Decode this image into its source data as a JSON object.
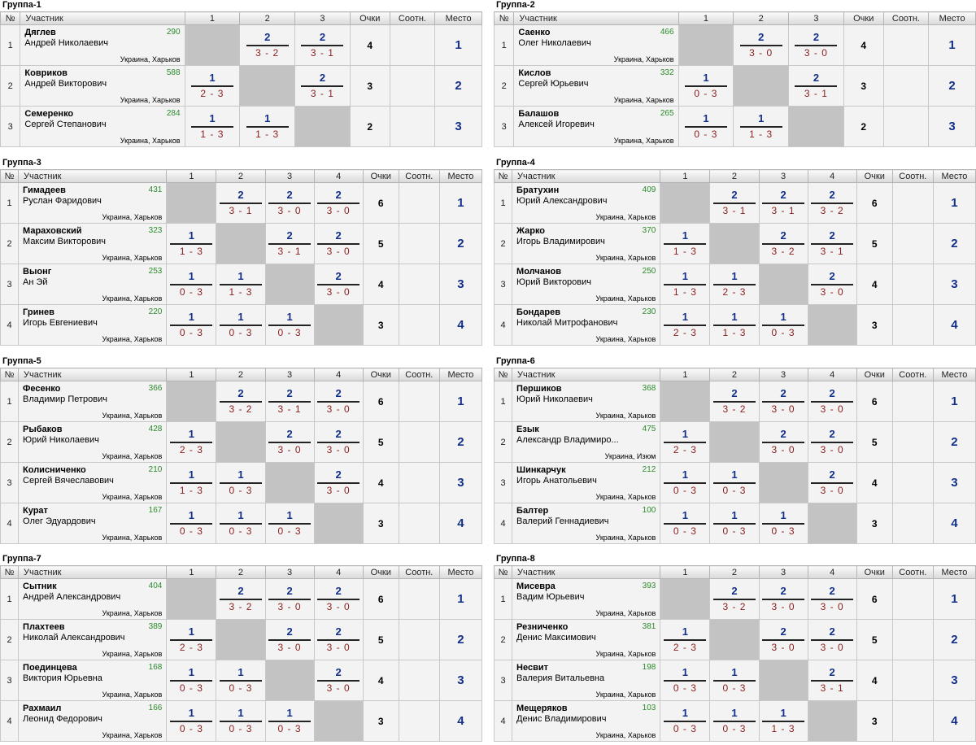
{
  "headers": {
    "num": "№",
    "participant": "Участник",
    "points": "Очки",
    "sootn": "Соотн.",
    "place": "Место"
  },
  "groups": [
    {
      "title": "Группа-1",
      "cols": [
        "1",
        "2",
        "3"
      ],
      "rows": [
        {
          "n": "1",
          "surname": "Дяглев",
          "name": "Андрей Николаевич",
          "rating": "290",
          "loc": "Украина, Харьков",
          "res": [
            null,
            {
              "p": "2",
              "s": "3 - 2"
            },
            {
              "p": "2",
              "s": "3 - 1"
            }
          ],
          "points": "4",
          "place": "1"
        },
        {
          "n": "2",
          "surname": "Ковриков",
          "name": "Андрей Викторович",
          "rating": "588",
          "loc": "Украина, Харьков",
          "res": [
            {
              "p": "1",
              "s": "2 - 3"
            },
            null,
            {
              "p": "2",
              "s": "3 - 1"
            }
          ],
          "points": "3",
          "place": "2"
        },
        {
          "n": "3",
          "surname": "Семеренко",
          "name": "Сергей Степанович",
          "rating": "284",
          "loc": "Украина, Харьков",
          "res": [
            {
              "p": "1",
              "s": "1 - 3"
            },
            {
              "p": "1",
              "s": "1 - 3"
            },
            null
          ],
          "points": "2",
          "place": "3"
        }
      ]
    },
    {
      "title": "Группа-2",
      "cols": [
        "1",
        "2",
        "3"
      ],
      "rows": [
        {
          "n": "1",
          "surname": "Саенко",
          "name": "Олег Николаевич",
          "rating": "466",
          "loc": "Украина, Харьков",
          "res": [
            null,
            {
              "p": "2",
              "s": "3 - 0"
            },
            {
              "p": "2",
              "s": "3 - 0"
            }
          ],
          "points": "4",
          "place": "1"
        },
        {
          "n": "2",
          "surname": "Кислов",
          "name": "Сергей Юрьевич",
          "rating": "332",
          "loc": "Украина, Харьков",
          "res": [
            {
              "p": "1",
              "s": "0 - 3"
            },
            null,
            {
              "p": "2",
              "s": "3 - 1"
            }
          ],
          "points": "3",
          "place": "2"
        },
        {
          "n": "3",
          "surname": "Балашов",
          "name": "Алексей Игоревич",
          "rating": "265",
          "loc": "Украина, Харьков",
          "res": [
            {
              "p": "1",
              "s": "0 - 3"
            },
            {
              "p": "1",
              "s": "1 - 3"
            },
            null
          ],
          "points": "2",
          "place": "3"
        }
      ]
    },
    {
      "title": "Группа-3",
      "cols": [
        "1",
        "2",
        "3",
        "4"
      ],
      "rows": [
        {
          "n": "1",
          "surname": "Гимадеев",
          "name": "Руслан Фаридович",
          "rating": "431",
          "loc": "Украина, Харьков",
          "res": [
            null,
            {
              "p": "2",
              "s": "3 - 1"
            },
            {
              "p": "2",
              "s": "3 - 0"
            },
            {
              "p": "2",
              "s": "3 - 0"
            }
          ],
          "points": "6",
          "place": "1"
        },
        {
          "n": "2",
          "surname": "Мараховский",
          "name": "Максим Викторович",
          "rating": "323",
          "loc": "Украина, Харьков",
          "res": [
            {
              "p": "1",
              "s": "1 - 3"
            },
            null,
            {
              "p": "2",
              "s": "3 - 1"
            },
            {
              "p": "2",
              "s": "3 - 0"
            }
          ],
          "points": "5",
          "place": "2"
        },
        {
          "n": "3",
          "surname": "Выонг",
          "name": "Ан Эй",
          "rating": "253",
          "loc": "Украина, Харьков",
          "res": [
            {
              "p": "1",
              "s": "0 - 3"
            },
            {
              "p": "1",
              "s": "1 - 3"
            },
            null,
            {
              "p": "2",
              "s": "3 - 0"
            }
          ],
          "points": "4",
          "place": "3"
        },
        {
          "n": "4",
          "surname": "Гринев",
          "name": "Игорь Евгениевич",
          "rating": "220",
          "loc": "Украина, Харьков",
          "res": [
            {
              "p": "1",
              "s": "0 - 3"
            },
            {
              "p": "1",
              "s": "0 - 3"
            },
            {
              "p": "1",
              "s": "0 - 3"
            },
            null
          ],
          "points": "3",
          "place": "4"
        }
      ]
    },
    {
      "title": "Группа-4",
      "cols": [
        "1",
        "2",
        "3",
        "4"
      ],
      "rows": [
        {
          "n": "1",
          "surname": "Братухин",
          "name": "Юрий Александрович",
          "rating": "409",
          "loc": "Украина, Харьков",
          "res": [
            null,
            {
              "p": "2",
              "s": "3 - 1"
            },
            {
              "p": "2",
              "s": "3 - 1"
            },
            {
              "p": "2",
              "s": "3 - 2"
            }
          ],
          "points": "6",
          "place": "1"
        },
        {
          "n": "2",
          "surname": "Жарко",
          "name": "Игорь Владимирович",
          "rating": "370",
          "loc": "Украина, Харьков",
          "res": [
            {
              "p": "1",
              "s": "1 - 3"
            },
            null,
            {
              "p": "2",
              "s": "3 - 2"
            },
            {
              "p": "2",
              "s": "3 - 1"
            }
          ],
          "points": "5",
          "place": "2"
        },
        {
          "n": "3",
          "surname": "Молчанов",
          "name": "Юрий Викторович",
          "rating": "250",
          "loc": "Украина, Харьков",
          "res": [
            {
              "p": "1",
              "s": "1 - 3"
            },
            {
              "p": "1",
              "s": "2 - 3"
            },
            null,
            {
              "p": "2",
              "s": "3 - 0"
            }
          ],
          "points": "4",
          "place": "3"
        },
        {
          "n": "4",
          "surname": "Бондарев",
          "name": "Николай Митрофанович",
          "rating": "230",
          "loc": "Украина, Харьков",
          "res": [
            {
              "p": "1",
              "s": "2 - 3"
            },
            {
              "p": "1",
              "s": "1 - 3"
            },
            {
              "p": "1",
              "s": "0 - 3"
            },
            null
          ],
          "points": "3",
          "place": "4"
        }
      ]
    },
    {
      "title": "Группа-5",
      "cols": [
        "1",
        "2",
        "3",
        "4"
      ],
      "rows": [
        {
          "n": "1",
          "surname": "Фесенко",
          "name": "Владимир Петрович",
          "rating": "366",
          "loc": "Украина, Харьков",
          "res": [
            null,
            {
              "p": "2",
              "s": "3 - 2"
            },
            {
              "p": "2",
              "s": "3 - 1"
            },
            {
              "p": "2",
              "s": "3 - 0"
            }
          ],
          "points": "6",
          "place": "1"
        },
        {
          "n": "2",
          "surname": "Рыбаков",
          "name": "Юрий Николаевич",
          "rating": "428",
          "loc": "Украина, Харьков",
          "res": [
            {
              "p": "1",
              "s": "2 - 3"
            },
            null,
            {
              "p": "2",
              "s": "3 - 0"
            },
            {
              "p": "2",
              "s": "3 - 0"
            }
          ],
          "points": "5",
          "place": "2"
        },
        {
          "n": "3",
          "surname": "Колисниченко",
          "name": "Сергей Вячеславович",
          "rating": "210",
          "loc": "Украина, Харьков",
          "res": [
            {
              "p": "1",
              "s": "1 - 3"
            },
            {
              "p": "1",
              "s": "0 - 3"
            },
            null,
            {
              "p": "2",
              "s": "3 - 0"
            }
          ],
          "points": "4",
          "place": "3"
        },
        {
          "n": "4",
          "surname": "Курат",
          "name": "Олег Эдуардович",
          "rating": "167",
          "loc": "Украина, Харьков",
          "res": [
            {
              "p": "1",
              "s": "0 - 3"
            },
            {
              "p": "1",
              "s": "0 - 3"
            },
            {
              "p": "1",
              "s": "0 - 3"
            },
            null
          ],
          "points": "3",
          "place": "4"
        }
      ]
    },
    {
      "title": "Группа-6",
      "cols": [
        "1",
        "2",
        "3",
        "4"
      ],
      "rows": [
        {
          "n": "1",
          "surname": "Першиков",
          "name": "Юрий Николаевич",
          "rating": "368",
          "loc": "Украина, Харьков",
          "res": [
            null,
            {
              "p": "2",
              "s": "3 - 2"
            },
            {
              "p": "2",
              "s": "3 - 0"
            },
            {
              "p": "2",
              "s": "3 - 0"
            }
          ],
          "points": "6",
          "place": "1"
        },
        {
          "n": "2",
          "surname": "Езык",
          "name": "Александр Владимиро...",
          "rating": "475",
          "loc": "Украина, Изюм",
          "res": [
            {
              "p": "1",
              "s": "2 - 3"
            },
            null,
            {
              "p": "2",
              "s": "3 - 0"
            },
            {
              "p": "2",
              "s": "3 - 0"
            }
          ],
          "points": "5",
          "place": "2"
        },
        {
          "n": "3",
          "surname": "Шинкарчук",
          "name": "Игорь Анатольевич",
          "rating": "212",
          "loc": "Украина, Харьков",
          "res": [
            {
              "p": "1",
              "s": "0 - 3"
            },
            {
              "p": "1",
              "s": "0 - 3"
            },
            null,
            {
              "p": "2",
              "s": "3 - 0"
            }
          ],
          "points": "4",
          "place": "3"
        },
        {
          "n": "4",
          "surname": "Балтер",
          "name": "Валерий Геннадиевич",
          "rating": "100",
          "loc": "Украина, Харьков",
          "res": [
            {
              "p": "1",
              "s": "0 - 3"
            },
            {
              "p": "1",
              "s": "0 - 3"
            },
            {
              "p": "1",
              "s": "0 - 3"
            },
            null
          ],
          "points": "3",
          "place": "4"
        }
      ]
    },
    {
      "title": "Группа-7",
      "cols": [
        "1",
        "2",
        "3",
        "4"
      ],
      "rows": [
        {
          "n": "1",
          "surname": "Сытник",
          "name": "Андрей Александрович",
          "rating": "404",
          "loc": "Украина, Харьков",
          "res": [
            null,
            {
              "p": "2",
              "s": "3 - 2"
            },
            {
              "p": "2",
              "s": "3 - 0"
            },
            {
              "p": "2",
              "s": "3 - 0"
            }
          ],
          "points": "6",
          "place": "1"
        },
        {
          "n": "2",
          "surname": "Плахтеев",
          "name": "Николай Александрович",
          "rating": "389",
          "loc": "Украина, Харьков",
          "res": [
            {
              "p": "1",
              "s": "2 - 3"
            },
            null,
            {
              "p": "2",
              "s": "3 - 0"
            },
            {
              "p": "2",
              "s": "3 - 0"
            }
          ],
          "points": "5",
          "place": "2"
        },
        {
          "n": "3",
          "surname": "Поединцева",
          "name": "Виктория Юрьевна",
          "rating": "168",
          "loc": "Украина, Харьков",
          "res": [
            {
              "p": "1",
              "s": "0 - 3"
            },
            {
              "p": "1",
              "s": "0 - 3"
            },
            null,
            {
              "p": "2",
              "s": "3 - 0"
            }
          ],
          "points": "4",
          "place": "3"
        },
        {
          "n": "4",
          "surname": "Рахмаил",
          "name": "Леонид Федорович",
          "rating": "166",
          "loc": "Украина, Харьков",
          "res": [
            {
              "p": "1",
              "s": "0 - 3"
            },
            {
              "p": "1",
              "s": "0 - 3"
            },
            {
              "p": "1",
              "s": "0 - 3"
            },
            null
          ],
          "points": "3",
          "place": "4"
        }
      ]
    },
    {
      "title": "Группа-8",
      "cols": [
        "1",
        "2",
        "3",
        "4"
      ],
      "rows": [
        {
          "n": "1",
          "surname": "Мисевра",
          "name": "Вадим Юрьевич",
          "rating": "393",
          "loc": "Украина, Харьков",
          "res": [
            null,
            {
              "p": "2",
              "s": "3 - 2"
            },
            {
              "p": "2",
              "s": "3 - 0"
            },
            {
              "p": "2",
              "s": "3 - 0"
            }
          ],
          "points": "6",
          "place": "1"
        },
        {
          "n": "2",
          "surname": "Резниченко",
          "name": "Денис Максимович",
          "rating": "381",
          "loc": "Украина, Харьков",
          "res": [
            {
              "p": "1",
              "s": "2 - 3"
            },
            null,
            {
              "p": "2",
              "s": "3 - 0"
            },
            {
              "p": "2",
              "s": "3 - 0"
            }
          ],
          "points": "5",
          "place": "2"
        },
        {
          "n": "3",
          "surname": "Несвит",
          "name": "Валерия Витальевна",
          "rating": "198",
          "loc": "Украина, Харьков",
          "res": [
            {
              "p": "1",
              "s": "0 - 3"
            },
            {
              "p": "1",
              "s": "0 - 3"
            },
            null,
            {
              "p": "2",
              "s": "3 - 1"
            }
          ],
          "points": "4",
          "place": "3"
        },
        {
          "n": "4",
          "surname": "Мещеряков",
          "name": "Денис Владимирович",
          "rating": "103",
          "loc": "Украина, Харьков",
          "res": [
            {
              "p": "1",
              "s": "0 - 3"
            },
            {
              "p": "1",
              "s": "0 - 3"
            },
            {
              "p": "1",
              "s": "1 - 3"
            },
            null
          ],
          "points": "3",
          "place": "4"
        }
      ]
    }
  ]
}
